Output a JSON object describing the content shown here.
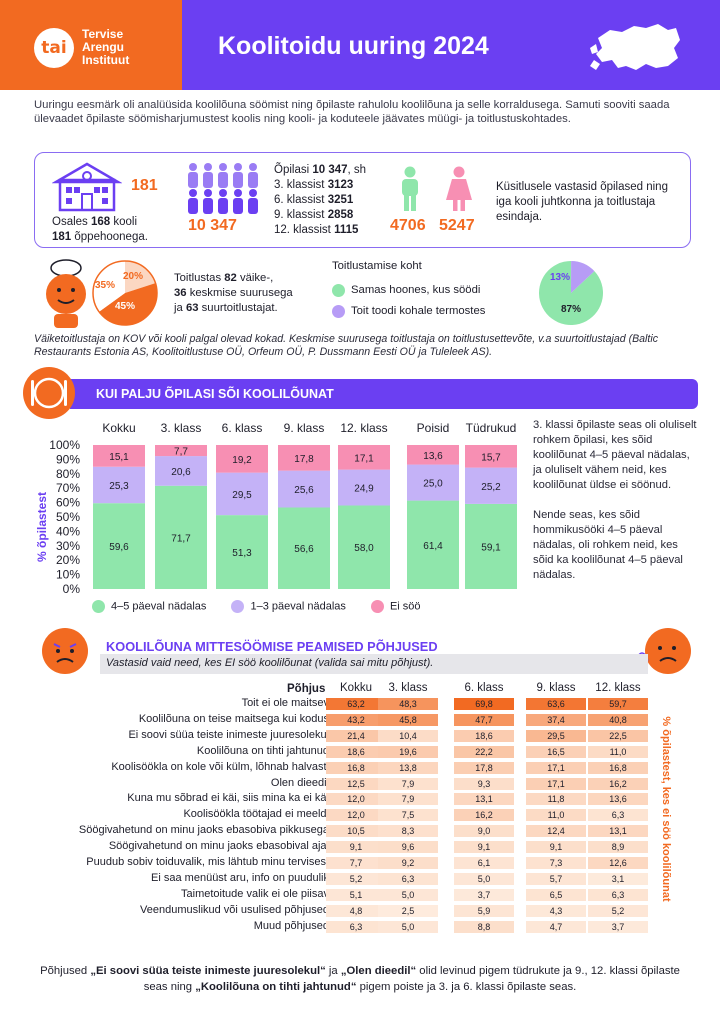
{
  "header": {
    "logo_mark": "tai",
    "org_line1": "Tervise",
    "org_line2": "Arengu",
    "org_line3": "Instituut",
    "title": "Koolitoidu uuring 2024"
  },
  "intro": "Uuringu eesmärk oli analüüsida koolilõuna söömist ning õpilaste rahulolu koolilõuna ja selle korraldusega. Samuti sooviti saada ülevaadet õpilaste söömisharjumustest koolis ning kooli- ja koduteele jäävates müügi- ja toitlustuskohtades.",
  "stats": {
    "buildings_number": "181",
    "schools_line1_prefix": "Osales ",
    "schools_count": "168",
    "schools_line1_suffix": " kooli",
    "buildings_count": "181",
    "buildings_suffix": " õppehoonega.",
    "students_number": "10 347",
    "students_prefix": "Õpilasi ",
    "students_total": "10 347",
    "students_suffix": ", sh",
    "grades": [
      {
        "label": "3. klassist ",
        "value": "3123"
      },
      {
        "label": "6. klassist ",
        "value": "3251"
      },
      {
        "label": "9. klassist ",
        "value": "2858"
      },
      {
        "label": "12. klassist ",
        "value": "1115"
      }
    ],
    "boys": "4706",
    "girls": "5247",
    "respondents_text": "Küsitlusele vastasid õpilased ning iga kooli juhtkonna ja toitlustaja esindaja."
  },
  "caterers": {
    "pie": [
      {
        "label": "20%",
        "value": 20,
        "color": "#fbd7c2"
      },
      {
        "label": "45%",
        "value": 45,
        "color": "#f26a21"
      },
      {
        "label": "35%",
        "value": 35,
        "color": "#ffffff"
      }
    ],
    "text_prefix": "Toitlustas ",
    "small_count": "82",
    "small_suffix": " väike-,",
    "medium_count": "36",
    "medium_suffix": " keskmise suurusega",
    "and_word": "ja ",
    "large_count": "63",
    "large_suffix": " suurtoitlustajat."
  },
  "location": {
    "title": "Toitlustamise koht",
    "items": [
      {
        "label": "Samas hoones, kus söödi",
        "color": "#8fe6ab"
      },
      {
        "label": "Toit toodi kohale termostes",
        "color": "#b79cf6"
      }
    ],
    "pie": [
      {
        "label": "87%",
        "value": 87,
        "color": "#8fe6ab"
      },
      {
        "label": "13%",
        "value": 13,
        "color": "#b79cf6"
      }
    ]
  },
  "note": "Väiketoitlustaja on KOV või kooli palgal olevad kokad. Keskmise suurusega toitlustaja on toitlustusettevõte, v.a suurtoitlustajad (Baltic Restaurants Estonia AS, Koolitoitlustuse OÜ, Orfeum OÜ, P. Dussmann Eesti OÜ ja Tuleleek AS).",
  "section1": {
    "title": "KUI PALJU ÕPILASI SÕI KOOLILÕUNAT",
    "side_text_1": "3. klassi õpilaste seas oli oluliselt rohkem õpilasi, kes sõid koolilõunat 4–5 päeval nädalas, ja oluliselt vähem neid, kes koolilõunat üldse ei söönud.",
    "side_text_2": "Nende seas, kes sõid hommikusööki 4–5 päeval nädalas, oli rohkem neid, kes sõid ka koolilõunat 4–5 päeval nädalas."
  },
  "chart_data": [
    {
      "type": "bar",
      "stacked": true,
      "categories": [
        "Kokku",
        "3. klass",
        "6. klass",
        "9. klass",
        "12. klass",
        "Poisid",
        "Tüdrukud"
      ],
      "series": [
        {
          "name": "4–5 päeval nädalas",
          "color": "#8fe6ab",
          "values": [
            59.6,
            71.7,
            51.3,
            56.6,
            58.0,
            61.4,
            59.1
          ],
          "labels": [
            "59,6",
            "71,7",
            "51,3",
            "56,6",
            "58,0",
            "61,4",
            "59,1"
          ]
        },
        {
          "name": "1–3 päeval nädalas",
          "color": "#c4b2f7",
          "values": [
            25.3,
            20.6,
            29.5,
            25.6,
            24.9,
            25.0,
            25.2
          ],
          "labels": [
            "25,3",
            "20,6",
            "29,5",
            "25,6",
            "24,9",
            "25,0",
            "25,2"
          ]
        },
        {
          "name": "Ei söö",
          "color": "#f78fb3",
          "values": [
            15.1,
            7.7,
            19.2,
            17.8,
            17.1,
            13.6,
            15.7
          ],
          "labels": [
            "15,1",
            "7,7",
            "19,2",
            "17,8",
            "17,1",
            "13,6",
            "15,7"
          ]
        }
      ],
      "ylabel": "% õpilastest",
      "yticks": [
        "0%",
        "10%",
        "20%",
        "30%",
        "40%",
        "50%",
        "60%",
        "70%",
        "80%",
        "90%",
        "100%"
      ],
      "ylim": [
        0,
        100
      ],
      "legend": "bottom"
    },
    {
      "type": "heatmap",
      "title": "KOOLILÕUNA MITTESÖÖMISE PEAMISED PÕHJUSED",
      "subtitle": "Vastasid vaid need, kes EI söö koolilõunat (valida sai mitu põhjust).",
      "row_header": "Põhjus",
      "columns": [
        "Kokku",
        "3. klass",
        "6. klass",
        "9. klass",
        "12. klass"
      ],
      "ylabel": "% õpilastest, kes ei söö koolilõunat",
      "rows": [
        {
          "label": "Toit ei ole maitsev",
          "values": [
            63.2,
            48.3,
            69.8,
            63.6,
            59.7
          ],
          "labels": [
            "63,2",
            "48,3",
            "69,8",
            "63,6",
            "59,7"
          ]
        },
        {
          "label": "Koolilõuna on teise maitsega kui kodus",
          "values": [
            43.2,
            45.8,
            47.7,
            37.4,
            40.8
          ],
          "labels": [
            "43,2",
            "45,8",
            "47,7",
            "37,4",
            "40,8"
          ]
        },
        {
          "label": "Ei soovi süüa teiste inimeste juuresolekul",
          "values": [
            21.4,
            10.4,
            18.6,
            29.5,
            22.5
          ],
          "labels": [
            "21,4",
            "10,4",
            "18,6",
            "29,5",
            "22,5"
          ]
        },
        {
          "label": "Koolilõuna on tihti jahtunud",
          "values": [
            18.6,
            19.6,
            22.2,
            16.5,
            11.0
          ],
          "labels": [
            "18,6",
            "19,6",
            "22,2",
            "16,5",
            "11,0"
          ]
        },
        {
          "label": "Koolisöökla on kole või külm, lõhnab halvasti",
          "values": [
            16.8,
            13.8,
            17.8,
            17.1,
            16.8
          ],
          "labels": [
            "16,8",
            "13,8",
            "17,8",
            "17,1",
            "16,8"
          ]
        },
        {
          "label": "Olen dieedil",
          "values": [
            12.5,
            7.9,
            9.3,
            17.1,
            16.2
          ],
          "labels": [
            "12,5",
            "7,9",
            "9,3",
            "17,1",
            "16,2"
          ]
        },
        {
          "label": "Kuna mu sõbrad ei käi, siis mina ka ei käi",
          "values": [
            12.0,
            7.9,
            13.1,
            11.8,
            13.6
          ],
          "labels": [
            "12,0",
            "7,9",
            "13,1",
            "11,8",
            "13,6"
          ]
        },
        {
          "label": "Koolisöökla töötajad ei meeldi",
          "values": [
            12.0,
            7.5,
            16.2,
            11.0,
            6.3
          ],
          "labels": [
            "12,0",
            "7,5",
            "16,2",
            "11,0",
            "6,3"
          ]
        },
        {
          "label": "Söögivahetund on minu jaoks ebasobiva pikkusega",
          "values": [
            10.5,
            8.3,
            9.0,
            12.4,
            13.1
          ],
          "labels": [
            "10,5",
            "8,3",
            "9,0",
            "12,4",
            "13,1"
          ]
        },
        {
          "label": "Söögivahetund on minu jaoks ebasobival ajal",
          "values": [
            9.1,
            9.6,
            9.1,
            9.1,
            8.9
          ],
          "labels": [
            "9,1",
            "9,6",
            "9,1",
            "9,1",
            "8,9"
          ]
        },
        {
          "label": "Puudub sobiv toiduvalik, mis lähtub minu tervisest",
          "values": [
            7.7,
            9.2,
            6.1,
            7.3,
            12.6
          ],
          "labels": [
            "7,7",
            "9,2",
            "6,1",
            "7,3",
            "12,6"
          ]
        },
        {
          "label": "Ei saa menüüst aru, info on puudulik",
          "values": [
            5.2,
            6.3,
            5.0,
            5.7,
            3.1
          ],
          "labels": [
            "5,2",
            "6,3",
            "5,0",
            "5,7",
            "3,1"
          ]
        },
        {
          "label": "Taimetoitude valik ei ole piisav",
          "values": [
            5.1,
            5.0,
            3.7,
            6.5,
            6.3
          ],
          "labels": [
            "5,1",
            "5,0",
            "3,7",
            "6,5",
            "6,3"
          ]
        },
        {
          "label": "Veendumuslikud või usulised põhjused",
          "values": [
            4.8,
            2.5,
            5.9,
            4.3,
            5.2
          ],
          "labels": [
            "4,8",
            "2,5",
            "5,9",
            "4,3",
            "5,2"
          ]
        },
        {
          "label": "Muud põhjused",
          "values": [
            6.3,
            5.0,
            8.8,
            4.7,
            3.7
          ],
          "labels": [
            "6,3",
            "5,0",
            "8,8",
            "4,7",
            "3,7"
          ]
        }
      ]
    }
  ],
  "footer": {
    "p1": "Põhjused ",
    "b1": "„Ei soovi süüa teiste inimeste juuresolekul“",
    "p2": " ja ",
    "b2": "„Olen dieedil“",
    "p3": " olid levinud pigem tüdrukute ja 9., 12. klassi õpilaste seas ning ",
    "b3": "„Koolilõuna on tihti jahtunud“",
    "p4": " pigem poiste ja 3. ja 6. klassi õpilaste seas."
  },
  "colors": {
    "orange": "#f26a21",
    "purple": "#6b3ff2",
    "green": "#8fe6ab",
    "lavender": "#c4b2f7",
    "pink": "#f78fb3"
  }
}
